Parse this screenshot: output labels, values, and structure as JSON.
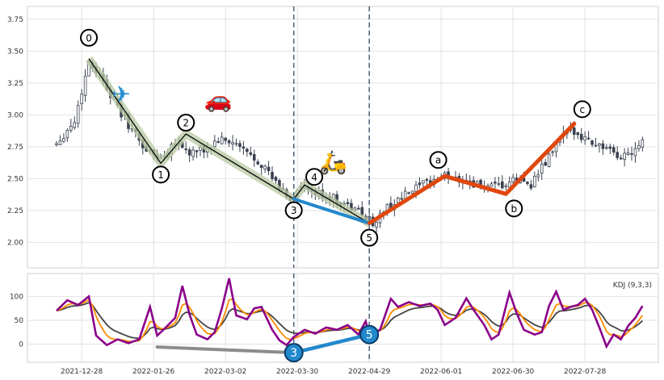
{
  "chart_data": [
    {
      "type": "candlestick",
      "title": "",
      "xlabel": "",
      "ylabel": "",
      "ylim": [
        1.8,
        3.85
      ],
      "yticks": [
        2.0,
        2.25,
        2.5,
        2.75,
        3.0,
        3.25,
        3.5,
        3.75
      ],
      "ytick_labels": [
        "2.00",
        "2.25",
        "2.50",
        "2.75",
        "3.00",
        "3.25",
        "3.50",
        "3.75"
      ],
      "x_tick_labels": [
        "2021-12-28",
        "2022-01-26",
        "2022-03-02",
        "2022-03-30",
        "2022-04-29",
        "2022-06-01",
        "2022-06-30",
        "2022-07-28"
      ],
      "x_tick_index": [
        7,
        27,
        47,
        67,
        87,
        107,
        127,
        147
      ],
      "n_bars": 164,
      "candle_color": "#3a4150",
      "grid": true,
      "close_anchors": [
        {
          "i": 0,
          "v": 2.78
        },
        {
          "i": 5,
          "v": 2.95
        },
        {
          "i": 9,
          "v": 3.42
        },
        {
          "i": 13,
          "v": 3.28
        },
        {
          "i": 17,
          "v": 3.05
        },
        {
          "i": 21,
          "v": 2.88
        },
        {
          "i": 25,
          "v": 2.72
        },
        {
          "i": 29,
          "v": 2.66
        },
        {
          "i": 33,
          "v": 2.8
        },
        {
          "i": 37,
          "v": 2.7
        },
        {
          "i": 41,
          "v": 2.72
        },
        {
          "i": 45,
          "v": 2.8
        },
        {
          "i": 49,
          "v": 2.78
        },
        {
          "i": 53,
          "v": 2.7
        },
        {
          "i": 57,
          "v": 2.62
        },
        {
          "i": 61,
          "v": 2.46
        },
        {
          "i": 65,
          "v": 2.34
        },
        {
          "i": 68,
          "v": 2.43
        },
        {
          "i": 72,
          "v": 2.38
        },
        {
          "i": 76,
          "v": 2.36
        },
        {
          "i": 80,
          "v": 2.3
        },
        {
          "i": 84,
          "v": 2.24
        },
        {
          "i": 88,
          "v": 2.15
        },
        {
          "i": 92,
          "v": 2.27
        },
        {
          "i": 96,
          "v": 2.35
        },
        {
          "i": 100,
          "v": 2.42
        },
        {
          "i": 104,
          "v": 2.48
        },
        {
          "i": 108,
          "v": 2.52
        },
        {
          "i": 112,
          "v": 2.5
        },
        {
          "i": 116,
          "v": 2.46
        },
        {
          "i": 120,
          "v": 2.42
        },
        {
          "i": 124,
          "v": 2.44
        },
        {
          "i": 128,
          "v": 2.49
        },
        {
          "i": 132,
          "v": 2.46
        },
        {
          "i": 136,
          "v": 2.62
        },
        {
          "i": 140,
          "v": 2.82
        },
        {
          "i": 144,
          "v": 2.88
        },
        {
          "i": 148,
          "v": 2.8
        },
        {
          "i": 152,
          "v": 2.75
        },
        {
          "i": 156,
          "v": 2.66
        },
        {
          "i": 160,
          "v": 2.72
        },
        {
          "i": 163,
          "v": 2.82
        }
      ],
      "wave_labels": [
        {
          "label": "0",
          "i": 9,
          "v": 3.44
        },
        {
          "label": "1",
          "i": 29,
          "v": 2.62
        },
        {
          "label": "2",
          "i": 36,
          "v": 2.85
        },
        {
          "label": "3",
          "i": 66,
          "v": 2.34
        },
        {
          "label": "4",
          "i": 69,
          "v": 2.45
        },
        {
          "label": "5",
          "i": 87,
          "v": 2.15
        },
        {
          "label": "a",
          "i": 108,
          "v": 2.52
        },
        {
          "label": "b",
          "i": 125,
          "v": 2.38
        },
        {
          "label": "c",
          "i": 144,
          "v": 2.93
        }
      ],
      "impulse_path_labels": [
        "0",
        "1",
        "2",
        "3",
        "4",
        "5"
      ],
      "correction_path_labels": [
        "5",
        "a",
        "b",
        "c"
      ],
      "impulse_color": "#111111",
      "impulse_band_color": "#b9c9a3",
      "correction_color": "#e0470e",
      "divergence_color": "#2288cc",
      "divergence_from": "3",
      "divergence_to": "5",
      "vlines_at_labels": [
        "3",
        "5"
      ],
      "vline_color": "#4a6078",
      "icons": [
        {
          "name": "airplane-icon",
          "glyph": "✈",
          "i": 18,
          "v": 3.1
        },
        {
          "name": "car-icon",
          "glyph": "🚗",
          "i": 45,
          "v": 3.06
        },
        {
          "name": "scooter-icon",
          "glyph": "🛵",
          "i": 77,
          "v": 2.57
        }
      ]
    },
    {
      "type": "line",
      "legend_label": "KDJ (9,3,3)",
      "legend_position": "top-right",
      "ylim": [
        -38,
        148
      ],
      "yticks": [
        0,
        50,
        100
      ],
      "ytick_labels": [
        "0",
        "50",
        "100"
      ],
      "grid": true,
      "series": [
        {
          "key": "j",
          "color": "#8b008b"
        },
        {
          "key": "d",
          "color": "#ff8c00"
        },
        {
          "key": "k",
          "color": "#444444"
        }
      ],
      "j_anchors": [
        {
          "i": 0,
          "v": 70
        },
        {
          "i": 3,
          "v": 92
        },
        {
          "i": 6,
          "v": 82
        },
        {
          "i": 9,
          "v": 100
        },
        {
          "i": 11,
          "v": 18
        },
        {
          "i": 14,
          "v": -2
        },
        {
          "i": 17,
          "v": 10
        },
        {
          "i": 20,
          "v": 2
        },
        {
          "i": 23,
          "v": 10
        },
        {
          "i": 26,
          "v": 78
        },
        {
          "i": 28,
          "v": 18
        },
        {
          "i": 30,
          "v": 32
        },
        {
          "i": 33,
          "v": 55
        },
        {
          "i": 35,
          "v": 122
        },
        {
          "i": 37,
          "v": 62
        },
        {
          "i": 39,
          "v": 20
        },
        {
          "i": 42,
          "v": 10
        },
        {
          "i": 44,
          "v": 25
        },
        {
          "i": 46,
          "v": 75
        },
        {
          "i": 48,
          "v": 138
        },
        {
          "i": 50,
          "v": 60
        },
        {
          "i": 53,
          "v": 52
        },
        {
          "i": 55,
          "v": 75
        },
        {
          "i": 57,
          "v": 78
        },
        {
          "i": 60,
          "v": 30
        },
        {
          "i": 62,
          "v": 8
        },
        {
          "i": 64,
          "v": -2
        },
        {
          "i": 66,
          "v": 15
        },
        {
          "i": 69,
          "v": 30
        },
        {
          "i": 72,
          "v": 22
        },
        {
          "i": 75,
          "v": 35
        },
        {
          "i": 78,
          "v": 30
        },
        {
          "i": 81,
          "v": 40
        },
        {
          "i": 84,
          "v": 20
        },
        {
          "i": 86,
          "v": 48
        },
        {
          "i": 87,
          "v": 18
        },
        {
          "i": 90,
          "v": 30
        },
        {
          "i": 93,
          "v": 95
        },
        {
          "i": 95,
          "v": 78
        },
        {
          "i": 98,
          "v": 88
        },
        {
          "i": 101,
          "v": 80
        },
        {
          "i": 104,
          "v": 85
        },
        {
          "i": 106,
          "v": 72
        },
        {
          "i": 108,
          "v": 40
        },
        {
          "i": 111,
          "v": 55
        },
        {
          "i": 114,
          "v": 96
        },
        {
          "i": 116,
          "v": 72
        },
        {
          "i": 119,
          "v": 40
        },
        {
          "i": 121,
          "v": 10
        },
        {
          "i": 123,
          "v": 20
        },
        {
          "i": 126,
          "v": 108
        },
        {
          "i": 128,
          "v": 65
        },
        {
          "i": 130,
          "v": 30
        },
        {
          "i": 133,
          "v": 20
        },
        {
          "i": 135,
          "v": 25
        },
        {
          "i": 137,
          "v": 80
        },
        {
          "i": 139,
          "v": 110
        },
        {
          "i": 141,
          "v": 72
        },
        {
          "i": 143,
          "v": 78
        },
        {
          "i": 145,
          "v": 82
        },
        {
          "i": 147,
          "v": 95
        },
        {
          "i": 149,
          "v": 72
        },
        {
          "i": 151,
          "v": 35
        },
        {
          "i": 153,
          "v": -5
        },
        {
          "i": 155,
          "v": 20
        },
        {
          "i": 157,
          "v": 10
        },
        {
          "i": 159,
          "v": 38
        },
        {
          "i": 161,
          "v": 55
        },
        {
          "i": 163,
          "v": 80
        }
      ],
      "trend_lines": [
        {
          "name": "kdj-trendline-gray",
          "color": "#8c8c8c",
          "from": {
            "i": 28,
            "v": -6
          },
          "to": {
            "i": 66,
            "v": -18
          }
        },
        {
          "name": "kdj-divergence-line",
          "color": "#2288cc",
          "from": {
            "i": 66,
            "v": -18
          },
          "to": {
            "i": 87,
            "v": 20
          }
        }
      ],
      "wave_markers": [
        {
          "label": "3",
          "i": 66,
          "v": -18
        },
        {
          "label": "5",
          "i": 87,
          "v": 20
        }
      ]
    }
  ]
}
